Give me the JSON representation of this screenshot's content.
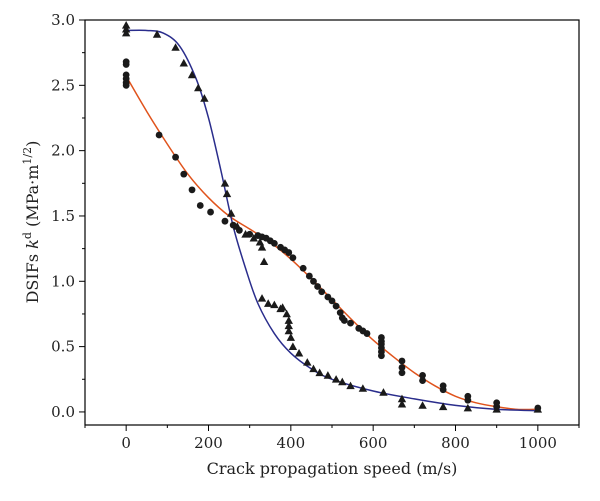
{
  "chart_data": {
    "type": "scatter",
    "xlabel": "Crack propagation speed (m/s)",
    "ylabel": {
      "prefix": "DSIFs ",
      "k": "k",
      "sup_d": "d",
      "unit_open": " (MPa·m",
      "sup_exp": "1/2",
      "unit_close": ")"
    },
    "xlim": [
      -100,
      1100
    ],
    "ylim": [
      -0.1,
      3.0
    ],
    "xticks": [
      0,
      200,
      400,
      600,
      800,
      1000
    ],
    "xtick_labels": [
      "0",
      "200",
      "400",
      "600",
      "800",
      "1000"
    ],
    "yticks": [
      0.0,
      0.5,
      1.0,
      1.5,
      2.0,
      2.5,
      3.0
    ],
    "ytick_labels": [
      "0.0",
      "0.5",
      "1.0",
      "1.5",
      "2.0",
      "2.5",
      "3.0"
    ],
    "grid": false,
    "legend": false,
    "series": [
      {
        "marker": "circle",
        "color": "#1a1a1a",
        "points": [
          [
            0,
            2.58
          ],
          [
            0,
            2.55
          ],
          [
            0,
            2.52
          ],
          [
            0,
            2.5
          ],
          [
            0,
            2.66
          ],
          [
            0,
            2.68
          ],
          [
            80,
            2.12
          ],
          [
            120,
            1.95
          ],
          [
            140,
            1.82
          ],
          [
            160,
            1.7
          ],
          [
            180,
            1.58
          ],
          [
            205,
            1.53
          ],
          [
            240,
            1.46
          ],
          [
            260,
            1.43
          ],
          [
            275,
            1.39
          ],
          [
            300,
            1.36
          ],
          [
            320,
            1.35
          ],
          [
            330,
            1.34
          ],
          [
            340,
            1.33
          ],
          [
            350,
            1.31
          ],
          [
            360,
            1.29
          ],
          [
            375,
            1.26
          ],
          [
            385,
            1.24
          ],
          [
            395,
            1.22
          ],
          [
            405,
            1.18
          ],
          [
            430,
            1.1
          ],
          [
            445,
            1.04
          ],
          [
            455,
            1.0
          ],
          [
            465,
            0.96
          ],
          [
            475,
            0.92
          ],
          [
            490,
            0.88
          ],
          [
            500,
            0.85
          ],
          [
            510,
            0.81
          ],
          [
            520,
            0.76
          ],
          [
            525,
            0.72
          ],
          [
            530,
            0.7
          ],
          [
            545,
            0.68
          ],
          [
            565,
            0.64
          ],
          [
            575,
            0.62
          ],
          [
            585,
            0.6
          ],
          [
            620,
            0.57
          ],
          [
            620,
            0.54
          ],
          [
            620,
            0.52
          ],
          [
            620,
            0.49
          ],
          [
            620,
            0.46
          ],
          [
            620,
            0.43
          ],
          [
            670,
            0.39
          ],
          [
            670,
            0.34
          ],
          [
            670,
            0.3
          ],
          [
            720,
            0.28
          ],
          [
            720,
            0.24
          ],
          [
            770,
            0.2
          ],
          [
            770,
            0.17
          ],
          [
            830,
            0.12
          ],
          [
            830,
            0.09
          ],
          [
            900,
            0.07
          ],
          [
            900,
            0.04
          ],
          [
            1000,
            0.03
          ]
        ]
      },
      {
        "marker": "triangle",
        "color": "#1a1a1a",
        "points": [
          [
            0,
            2.96
          ],
          [
            0,
            2.93
          ],
          [
            0,
            2.9
          ],
          [
            75,
            2.89
          ],
          [
            120,
            2.79
          ],
          [
            140,
            2.67
          ],
          [
            160,
            2.58
          ],
          [
            175,
            2.48
          ],
          [
            190,
            2.4
          ],
          [
            240,
            1.75
          ],
          [
            245,
            1.67
          ],
          [
            255,
            1.52
          ],
          [
            270,
            1.42
          ],
          [
            290,
            1.36
          ],
          [
            310,
            1.33
          ],
          [
            325,
            1.3
          ],
          [
            330,
            1.26
          ],
          [
            335,
            1.15
          ],
          [
            330,
            0.87
          ],
          [
            345,
            0.83
          ],
          [
            360,
            0.82
          ],
          [
            375,
            0.79
          ],
          [
            380,
            0.8
          ],
          [
            390,
            0.75
          ],
          [
            395,
            0.7
          ],
          [
            395,
            0.66
          ],
          [
            395,
            0.62
          ],
          [
            400,
            0.57
          ],
          [
            405,
            0.5
          ],
          [
            420,
            0.45
          ],
          [
            440,
            0.38
          ],
          [
            455,
            0.33
          ],
          [
            470,
            0.3
          ],
          [
            490,
            0.28
          ],
          [
            510,
            0.25
          ],
          [
            525,
            0.23
          ],
          [
            545,
            0.2
          ],
          [
            575,
            0.18
          ],
          [
            625,
            0.15
          ],
          [
            670,
            0.1
          ],
          [
            670,
            0.06
          ],
          [
            720,
            0.05
          ],
          [
            770,
            0.04
          ],
          [
            830,
            0.03
          ],
          [
            900,
            0.02
          ],
          [
            1000,
            0.02
          ]
        ]
      }
    ],
    "fit_lines": [
      {
        "color": "#e0531c",
        "points": [
          [
            0,
            2.57
          ],
          [
            50,
            2.3
          ],
          [
            100,
            2.05
          ],
          [
            150,
            1.82
          ],
          [
            200,
            1.64
          ],
          [
            250,
            1.5
          ],
          [
            300,
            1.4
          ],
          [
            350,
            1.3
          ],
          [
            400,
            1.17
          ],
          [
            450,
            1.02
          ],
          [
            500,
            0.86
          ],
          [
            550,
            0.7
          ],
          [
            600,
            0.55
          ],
          [
            650,
            0.42
          ],
          [
            700,
            0.3
          ],
          [
            750,
            0.2
          ],
          [
            800,
            0.12
          ],
          [
            850,
            0.07
          ],
          [
            900,
            0.04
          ],
          [
            950,
            0.02
          ],
          [
            1000,
            0.02
          ]
        ]
      },
      {
        "color": "#2a2d8c",
        "points": [
          [
            0,
            2.92
          ],
          [
            50,
            2.92
          ],
          [
            90,
            2.9
          ],
          [
            130,
            2.8
          ],
          [
            170,
            2.55
          ],
          [
            200,
            2.25
          ],
          [
            230,
            1.85
          ],
          [
            260,
            1.42
          ],
          [
            290,
            1.1
          ],
          [
            320,
            0.83
          ],
          [
            360,
            0.6
          ],
          [
            400,
            0.45
          ],
          [
            450,
            0.33
          ],
          [
            500,
            0.25
          ],
          [
            600,
            0.16
          ],
          [
            700,
            0.1
          ],
          [
            800,
            0.05
          ],
          [
            900,
            0.02
          ],
          [
            1000,
            0.01
          ]
        ]
      }
    ]
  }
}
